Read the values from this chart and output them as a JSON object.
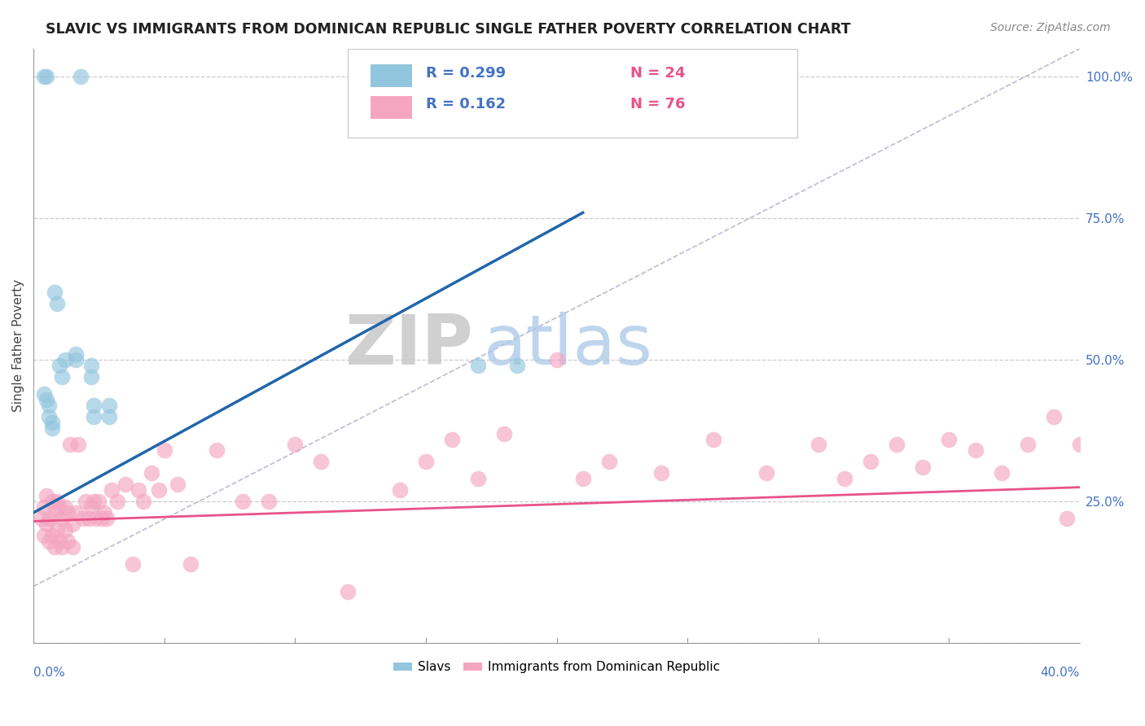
{
  "title": "SLAVIC VS IMMIGRANTS FROM DOMINICAN REPUBLIC SINGLE FATHER POVERTY CORRELATION CHART",
  "source": "Source: ZipAtlas.com",
  "ylabel": "Single Father Poverty",
  "right_yticklabels": [
    "",
    "25.0%",
    "50.0%",
    "75.0%",
    "100.0%"
  ],
  "right_ytick_vals": [
    0.0,
    0.25,
    0.5,
    0.75,
    1.0
  ],
  "legend_blue_r": "R = 0.299",
  "legend_blue_n": "N = 24",
  "legend_pink_r": "R = 0.162",
  "legend_pink_n": "N = 76",
  "legend_bottom_blue": "Slavs",
  "legend_bottom_pink": "Immigrants from Dominican Republic",
  "blue_color": "#92c5de",
  "pink_color": "#f4a6c0",
  "blue_line_color": "#2166ac",
  "pink_line_color": "#e8538a",
  "diag_color": "#aaaacc",
  "background_color": "#ffffff",
  "watermark_zip": "ZIP",
  "watermark_atlas": "atlas",
  "xlim": [
    0.0,
    0.4
  ],
  "ylim": [
    0.0,
    1.05
  ],
  "blue_scatter_x": [
    0.004,
    0.005,
    0.018,
    0.004,
    0.005,
    0.006,
    0.006,
    0.007,
    0.007,
    0.008,
    0.009,
    0.01,
    0.011,
    0.012,
    0.016,
    0.016,
    0.022,
    0.022,
    0.023,
    0.023,
    0.029,
    0.029,
    0.17,
    0.185
  ],
  "blue_scatter_y": [
    1.0,
    1.0,
    1.0,
    0.44,
    0.43,
    0.42,
    0.4,
    0.39,
    0.38,
    0.62,
    0.6,
    0.49,
    0.47,
    0.5,
    0.51,
    0.5,
    0.49,
    0.47,
    0.42,
    0.4,
    0.42,
    0.4,
    0.49,
    0.49
  ],
  "pink_scatter_x": [
    0.003,
    0.004,
    0.004,
    0.005,
    0.005,
    0.006,
    0.006,
    0.007,
    0.007,
    0.008,
    0.008,
    0.009,
    0.009,
    0.01,
    0.01,
    0.011,
    0.011,
    0.012,
    0.012,
    0.013,
    0.013,
    0.014,
    0.015,
    0.015,
    0.016,
    0.017,
    0.019,
    0.02,
    0.021,
    0.022,
    0.023,
    0.024,
    0.025,
    0.026,
    0.027,
    0.028,
    0.03,
    0.032,
    0.035,
    0.038,
    0.04,
    0.042,
    0.045,
    0.048,
    0.05,
    0.055,
    0.06,
    0.07,
    0.08,
    0.09,
    0.1,
    0.11,
    0.12,
    0.14,
    0.15,
    0.16,
    0.17,
    0.18,
    0.2,
    0.21,
    0.22,
    0.24,
    0.26,
    0.28,
    0.3,
    0.31,
    0.32,
    0.33,
    0.34,
    0.35,
    0.36,
    0.37,
    0.38,
    0.39,
    0.395,
    0.4
  ],
  "pink_scatter_y": [
    0.22,
    0.24,
    0.19,
    0.26,
    0.21,
    0.22,
    0.18,
    0.25,
    0.19,
    0.23,
    0.17,
    0.25,
    0.2,
    0.24,
    0.18,
    0.22,
    0.17,
    0.24,
    0.2,
    0.23,
    0.18,
    0.35,
    0.21,
    0.17,
    0.23,
    0.35,
    0.22,
    0.25,
    0.22,
    0.24,
    0.25,
    0.22,
    0.25,
    0.22,
    0.23,
    0.22,
    0.27,
    0.25,
    0.28,
    0.14,
    0.27,
    0.25,
    0.3,
    0.27,
    0.34,
    0.28,
    0.14,
    0.34,
    0.25,
    0.25,
    0.35,
    0.32,
    0.09,
    0.27,
    0.32,
    0.36,
    0.29,
    0.37,
    0.5,
    0.29,
    0.32,
    0.3,
    0.36,
    0.3,
    0.35,
    0.29,
    0.32,
    0.35,
    0.31,
    0.36,
    0.34,
    0.3,
    0.35,
    0.4,
    0.22,
    0.35
  ],
  "blue_line_x": [
    0.0,
    0.21
  ],
  "blue_line_y": [
    0.23,
    0.76
  ],
  "pink_line_x": [
    0.0,
    0.4
  ],
  "pink_line_y": [
    0.215,
    0.275
  ],
  "diag_line_x": [
    0.0,
    0.4
  ],
  "diag_line_y": [
    0.1,
    1.05
  ]
}
